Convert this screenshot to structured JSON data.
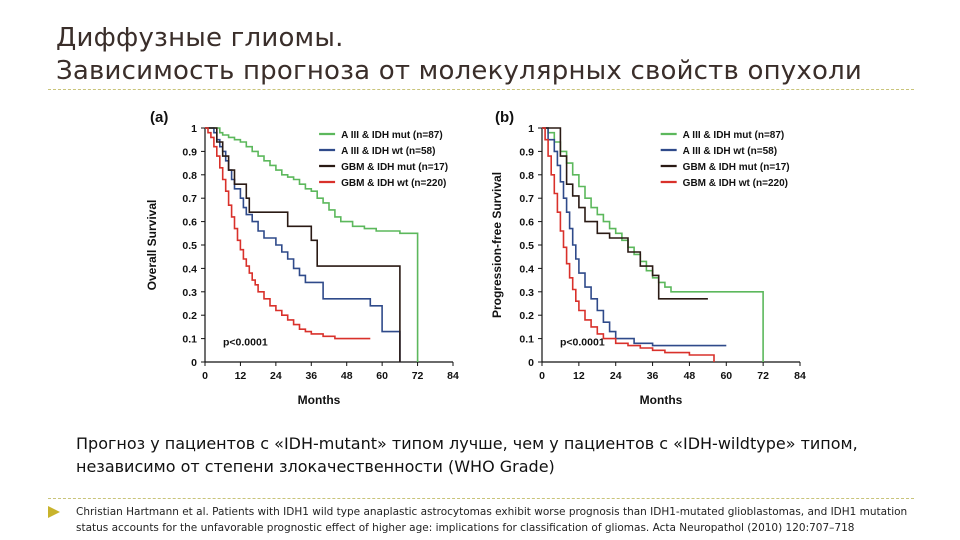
{
  "slide": {
    "title_line1": "Диффузные глиомы.",
    "title_line2": "Зависимость прогноза от молекулярных свойств опухоли",
    "caption": "Прогноз у пациентов с «IDH-mutant» типом лучше, чем у пациентов с «IDH-wildtype» типом, независимо от степени злокачественности (WHO Grade)",
    "citation": "Christian Hartmann et al. Patients with IDH1 wild type anaplastic astrocytomas exhibit worse prognosis than IDH1-mutated glioblastomas, and IDH1 mutation status accounts for the unfavorable prognostic effect of higher age: implications for classification of gliomas. Acta Neuropathol (2010) 120:707–718"
  },
  "colors": {
    "title": "#3a2e2a",
    "rule": "#c9c47a",
    "bullet": "#c8b32c"
  },
  "chart_data": [
    {
      "type": "line",
      "panel_label": "(a)",
      "ylabel": "Overall Survival",
      "xlabel": "Months",
      "xticks": [
        0,
        12,
        24,
        36,
        48,
        60,
        72,
        84
      ],
      "yticks": [
        0,
        0.1,
        0.2,
        0.3,
        0.4,
        0.5,
        0.6,
        0.7,
        0.8,
        0.9,
        1
      ],
      "ytick_labels": [
        "0",
        "0.1",
        "0.2",
        "0.3",
        "0.4",
        "0.5",
        "0.6",
        "0.7",
        "0.8",
        "0.9",
        "1"
      ],
      "xlim": [
        0,
        84
      ],
      "ylim": [
        0,
        1
      ],
      "annotation": "p<0.0001",
      "legend_position": "top-right",
      "series": [
        {
          "name": "A III & IDH mut (n=87)",
          "color": "#5cb85c",
          "step": true,
          "points": [
            [
              0,
              1
            ],
            [
              4,
              1
            ],
            [
              5,
              0.98
            ],
            [
              6,
              0.97
            ],
            [
              8,
              0.96
            ],
            [
              10,
              0.95
            ],
            [
              12,
              0.94
            ],
            [
              14,
              0.92
            ],
            [
              16,
              0.9
            ],
            [
              18,
              0.88
            ],
            [
              20,
              0.86
            ],
            [
              22,
              0.84
            ],
            [
              24,
              0.82
            ],
            [
              26,
              0.8
            ],
            [
              28,
              0.79
            ],
            [
              30,
              0.78
            ],
            [
              32,
              0.76
            ],
            [
              34,
              0.74
            ],
            [
              36,
              0.73
            ],
            [
              38,
              0.7
            ],
            [
              40,
              0.68
            ],
            [
              42,
              0.65
            ],
            [
              44,
              0.62
            ],
            [
              46,
              0.6
            ],
            [
              50,
              0.58
            ],
            [
              54,
              0.57
            ],
            [
              58,
              0.56
            ],
            [
              66,
              0.55
            ],
            [
              72,
              0.55
            ],
            [
              72,
              0
            ]
          ]
        },
        {
          "name": "A III & IDH wt (n=58)",
          "color": "#2f4a8a",
          "step": true,
          "points": [
            [
              0,
              1
            ],
            [
              3,
              0.98
            ],
            [
              4,
              0.95
            ],
            [
              5,
              0.92
            ],
            [
              6,
              0.9
            ],
            [
              7,
              0.86
            ],
            [
              8,
              0.82
            ],
            [
              9,
              0.78
            ],
            [
              10,
              0.74
            ],
            [
              12,
              0.7
            ],
            [
              13,
              0.66
            ],
            [
              14,
              0.63
            ],
            [
              16,
              0.6
            ],
            [
              18,
              0.56
            ],
            [
              20,
              0.53
            ],
            [
              24,
              0.5
            ],
            [
              26,
              0.47
            ],
            [
              28,
              0.44
            ],
            [
              30,
              0.4
            ],
            [
              32,
              0.37
            ],
            [
              34,
              0.34
            ],
            [
              40,
              0.27
            ],
            [
              56,
              0.24
            ],
            [
              60,
              0.13
            ],
            [
              66,
              0.13
            ],
            [
              66,
              0
            ]
          ]
        },
        {
          "name": "GBM & IDH mut (n=17)",
          "color": "#2a1a14",
          "step": true,
          "points": [
            [
              0,
              1
            ],
            [
              4,
              0.94
            ],
            [
              6,
              0.88
            ],
            [
              8,
              0.82
            ],
            [
              10,
              0.76
            ],
            [
              12,
              0.76
            ],
            [
              14,
              0.7
            ],
            [
              15,
              0.64
            ],
            [
              16,
              0.64
            ],
            [
              28,
              0.58
            ],
            [
              36,
              0.52
            ],
            [
              38,
              0.41
            ],
            [
              48,
              0.41
            ],
            [
              60,
              0.41
            ],
            [
              66,
              0.41
            ],
            [
              66,
              0
            ]
          ]
        },
        {
          "name": "GBM & IDH wt (n=220)",
          "color": "#d9312b",
          "step": true,
          "points": [
            [
              0,
              1
            ],
            [
              1,
              0.98
            ],
            [
              2,
              0.96
            ],
            [
              3,
              0.92
            ],
            [
              4,
              0.88
            ],
            [
              5,
              0.83
            ],
            [
              6,
              0.78
            ],
            [
              7,
              0.73
            ],
            [
              8,
              0.67
            ],
            [
              9,
              0.62
            ],
            [
              10,
              0.57
            ],
            [
              11,
              0.52
            ],
            [
              12,
              0.48
            ],
            [
              13,
              0.44
            ],
            [
              14,
              0.41
            ],
            [
              15,
              0.38
            ],
            [
              16,
              0.35
            ],
            [
              17,
              0.33
            ],
            [
              18,
              0.3
            ],
            [
              20,
              0.27
            ],
            [
              22,
              0.24
            ],
            [
              24,
              0.22
            ],
            [
              26,
              0.2
            ],
            [
              28,
              0.18
            ],
            [
              30,
              0.16
            ],
            [
              32,
              0.14
            ],
            [
              34,
              0.13
            ],
            [
              36,
              0.12
            ],
            [
              40,
              0.11
            ],
            [
              44,
              0.1
            ],
            [
              48,
              0.1
            ],
            [
              56,
              0.1
            ]
          ]
        }
      ]
    },
    {
      "type": "line",
      "panel_label": "(b)",
      "ylabel": "Progression-free Survival",
      "xlabel": "Months",
      "xticks": [
        0,
        12,
        24,
        36,
        48,
        60,
        72,
        84
      ],
      "yticks": [
        0,
        0.1,
        0.2,
        0.3,
        0.4,
        0.5,
        0.6,
        0.7,
        0.8,
        0.9,
        1
      ],
      "ytick_labels": [
        "0",
        "0.1",
        "0.2",
        "0.3",
        "0.4",
        "0.5",
        "0.6",
        "0.7",
        "0.8",
        "0.9",
        "1"
      ],
      "xlim": [
        0,
        84
      ],
      "ylim": [
        0,
        1
      ],
      "annotation": "p<0.0001",
      "legend_position": "top-right",
      "series": [
        {
          "name": "A III & IDH mut (n=87)",
          "color": "#5cb85c",
          "step": true,
          "points": [
            [
              0,
              1
            ],
            [
              2,
              0.98
            ],
            [
              4,
              0.94
            ],
            [
              6,
              0.9
            ],
            [
              8,
              0.85
            ],
            [
              10,
              0.8
            ],
            [
              12,
              0.75
            ],
            [
              14,
              0.7
            ],
            [
              16,
              0.66
            ],
            [
              18,
              0.63
            ],
            [
              20,
              0.6
            ],
            [
              22,
              0.57
            ],
            [
              24,
              0.55
            ],
            [
              26,
              0.52
            ],
            [
              28,
              0.49
            ],
            [
              30,
              0.46
            ],
            [
              32,
              0.43
            ],
            [
              34,
              0.39
            ],
            [
              36,
              0.36
            ],
            [
              38,
              0.34
            ],
            [
              40,
              0.32
            ],
            [
              42,
              0.3
            ],
            [
              48,
              0.3
            ],
            [
              60,
              0.3
            ],
            [
              72,
              0.3
            ],
            [
              72,
              0
            ]
          ]
        },
        {
          "name": "A III & IDH wt (n=58)",
          "color": "#2f4a8a",
          "step": true,
          "points": [
            [
              0,
              1
            ],
            [
              2,
              0.95
            ],
            [
              4,
              0.9
            ],
            [
              5,
              0.84
            ],
            [
              6,
              0.77
            ],
            [
              7,
              0.7
            ],
            [
              8,
              0.64
            ],
            [
              9,
              0.57
            ],
            [
              10,
              0.5
            ],
            [
              11,
              0.44
            ],
            [
              12,
              0.38
            ],
            [
              14,
              0.32
            ],
            [
              16,
              0.27
            ],
            [
              18,
              0.22
            ],
            [
              20,
              0.17
            ],
            [
              22,
              0.13
            ],
            [
              24,
              0.1
            ],
            [
              30,
              0.08
            ],
            [
              36,
              0.07
            ],
            [
              48,
              0.07
            ],
            [
              60,
              0.07
            ]
          ]
        },
        {
          "name": "GBM & IDH mut (n=17)",
          "color": "#2a1a14",
          "step": true,
          "points": [
            [
              0,
              1
            ],
            [
              6,
              0.88
            ],
            [
              8,
              0.76
            ],
            [
              10,
              0.71
            ],
            [
              12,
              0.66
            ],
            [
              14,
              0.6
            ],
            [
              18,
              0.55
            ],
            [
              22,
              0.53
            ],
            [
              28,
              0.47
            ],
            [
              32,
              0.41
            ],
            [
              36,
              0.37
            ],
            [
              38,
              0.27
            ],
            [
              48,
              0.27
            ],
            [
              54,
              0.27
            ]
          ]
        },
        {
          "name": "GBM & IDH wt (n=220)",
          "color": "#d9312b",
          "step": true,
          "points": [
            [
              0,
              1
            ],
            [
              1,
              0.95
            ],
            [
              2,
              0.88
            ],
            [
              3,
              0.8
            ],
            [
              4,
              0.72
            ],
            [
              5,
              0.64
            ],
            [
              6,
              0.56
            ],
            [
              7,
              0.49
            ],
            [
              8,
              0.42
            ],
            [
              9,
              0.36
            ],
            [
              10,
              0.31
            ],
            [
              11,
              0.26
            ],
            [
              12,
              0.22
            ],
            [
              14,
              0.18
            ],
            [
              16,
              0.15
            ],
            [
              18,
              0.12
            ],
            [
              20,
              0.1
            ],
            [
              24,
              0.08
            ],
            [
              28,
              0.07
            ],
            [
              32,
              0.06
            ],
            [
              36,
              0.05
            ],
            [
              40,
              0.04
            ],
            [
              48,
              0.03
            ],
            [
              56,
              0.03
            ],
            [
              56,
              0
            ]
          ]
        }
      ]
    }
  ]
}
